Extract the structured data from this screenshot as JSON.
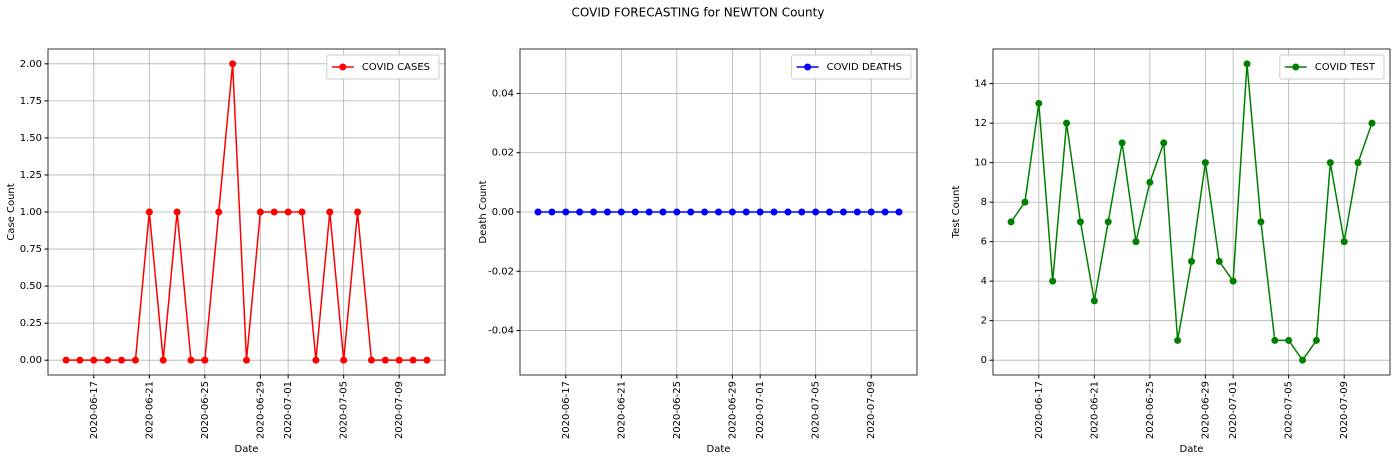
{
  "title": "COVID FORECASTING for NEWTON County",
  "chart_data": [
    {
      "type": "line",
      "xlabel": "Date",
      "ylabel": "Case Count",
      "grid": true,
      "legend": "upper right",
      "x": [
        "2020-06-15",
        "2020-06-16",
        "2020-06-17",
        "2020-06-18",
        "2020-06-19",
        "2020-06-20",
        "2020-06-21",
        "2020-06-22",
        "2020-06-23",
        "2020-06-24",
        "2020-06-25",
        "2020-06-26",
        "2020-06-27",
        "2020-06-28",
        "2020-06-29",
        "2020-06-30",
        "2020-07-01",
        "2020-07-02",
        "2020-07-03",
        "2020-07-04",
        "2020-07-05",
        "2020-07-06",
        "2020-07-07",
        "2020-07-08",
        "2020-07-09",
        "2020-07-10",
        "2020-07-11"
      ],
      "series": [
        {
          "name": "COVID CASES",
          "color": "#ff0000",
          "values": [
            0,
            0,
            0,
            0,
            0,
            0,
            1,
            0,
            1,
            0,
            0,
            1,
            2,
            0,
            1,
            1,
            1,
            1,
            0,
            1,
            0,
            1,
            0,
            0,
            0,
            0,
            0
          ]
        }
      ],
      "xlim": [
        "2020-06-13T16:48:00Z",
        "2020-07-12T07:12:00Z"
      ],
      "xticks": [
        "2020-06-17",
        "2020-06-21",
        "2020-06-25",
        "2020-06-29",
        "2020-07-01",
        "2020-07-05",
        "2020-07-09"
      ],
      "ylim": [
        -0.1,
        2.1
      ],
      "yticks": [
        {
          "value": 0,
          "label": "0.00"
        },
        {
          "value": 0.25,
          "label": "0.25"
        },
        {
          "value": 0.5,
          "label": "0.50"
        },
        {
          "value": 0.75,
          "label": "0.75"
        },
        {
          "value": 1,
          "label": "1.00"
        },
        {
          "value": 1.25,
          "label": "1.25"
        },
        {
          "value": 1.5,
          "label": "1.50"
        },
        {
          "value": 1.75,
          "label": "1.75"
        },
        {
          "value": 2,
          "label": "2.00"
        }
      ]
    },
    {
      "type": "line",
      "xlabel": "Date",
      "ylabel": "Death Count",
      "grid": true,
      "legend": "upper right",
      "x": [
        "2020-06-15",
        "2020-06-16",
        "2020-06-17",
        "2020-06-18",
        "2020-06-19",
        "2020-06-20",
        "2020-06-21",
        "2020-06-22",
        "2020-06-23",
        "2020-06-24",
        "2020-06-25",
        "2020-06-26",
        "2020-06-27",
        "2020-06-28",
        "2020-06-29",
        "2020-06-30",
        "2020-07-01",
        "2020-07-02",
        "2020-07-03",
        "2020-07-04",
        "2020-07-05",
        "2020-07-06",
        "2020-07-07",
        "2020-07-08",
        "2020-07-09",
        "2020-07-10",
        "2020-07-11"
      ],
      "series": [
        {
          "name": "COVID DEATHS",
          "color": "#0000ff",
          "values": [
            0,
            0,
            0,
            0,
            0,
            0,
            0,
            0,
            0,
            0,
            0,
            0,
            0,
            0,
            0,
            0,
            0,
            0,
            0,
            0,
            0,
            0,
            0,
            0,
            0,
            0,
            0
          ]
        }
      ],
      "xlim": [
        "2020-06-13T16:48:00Z",
        "2020-07-12T07:12:00Z"
      ],
      "xticks": [
        "2020-06-17",
        "2020-06-21",
        "2020-06-25",
        "2020-06-29",
        "2020-07-01",
        "2020-07-05",
        "2020-07-09"
      ],
      "ylim": [
        -0.055,
        0.055
      ],
      "yticks": [
        {
          "value": -0.04,
          "label": "-0.04"
        },
        {
          "value": -0.02,
          "label": "-0.02"
        },
        {
          "value": 0,
          "label": "0.00"
        },
        {
          "value": 0.02,
          "label": "0.02"
        },
        {
          "value": 0.04,
          "label": "0.04"
        }
      ]
    },
    {
      "type": "line",
      "xlabel": "Date",
      "ylabel": "Test Count",
      "grid": true,
      "legend": "upper right",
      "x": [
        "2020-06-15",
        "2020-06-16",
        "2020-06-17",
        "2020-06-18",
        "2020-06-19",
        "2020-06-20",
        "2020-06-21",
        "2020-06-22",
        "2020-06-23",
        "2020-06-24",
        "2020-06-25",
        "2020-06-26",
        "2020-06-27",
        "2020-06-28",
        "2020-06-29",
        "2020-06-30",
        "2020-07-01",
        "2020-07-02",
        "2020-07-03",
        "2020-07-04",
        "2020-07-05",
        "2020-07-06",
        "2020-07-07",
        "2020-07-08",
        "2020-07-09",
        "2020-07-10",
        "2020-07-11"
      ],
      "series": [
        {
          "name": "COVID TEST",
          "color": "#008000",
          "values": [
            7,
            8,
            13,
            4,
            12,
            7,
            3,
            7,
            11,
            6,
            9,
            11,
            1,
            5,
            10,
            5,
            4,
            15,
            7,
            1,
            1,
            0,
            1,
            10,
            6,
            10,
            12
          ]
        }
      ],
      "xlim": [
        "2020-06-13T16:48:00Z",
        "2020-07-12T07:12:00Z"
      ],
      "xticks": [
        "2020-06-17",
        "2020-06-21",
        "2020-06-25",
        "2020-06-29",
        "2020-07-01",
        "2020-07-05",
        "2020-07-09"
      ],
      "ylim": [
        -0.75,
        15.75
      ],
      "yticks": [
        0,
        2,
        4,
        6,
        8,
        10,
        12,
        14
      ]
    }
  ]
}
